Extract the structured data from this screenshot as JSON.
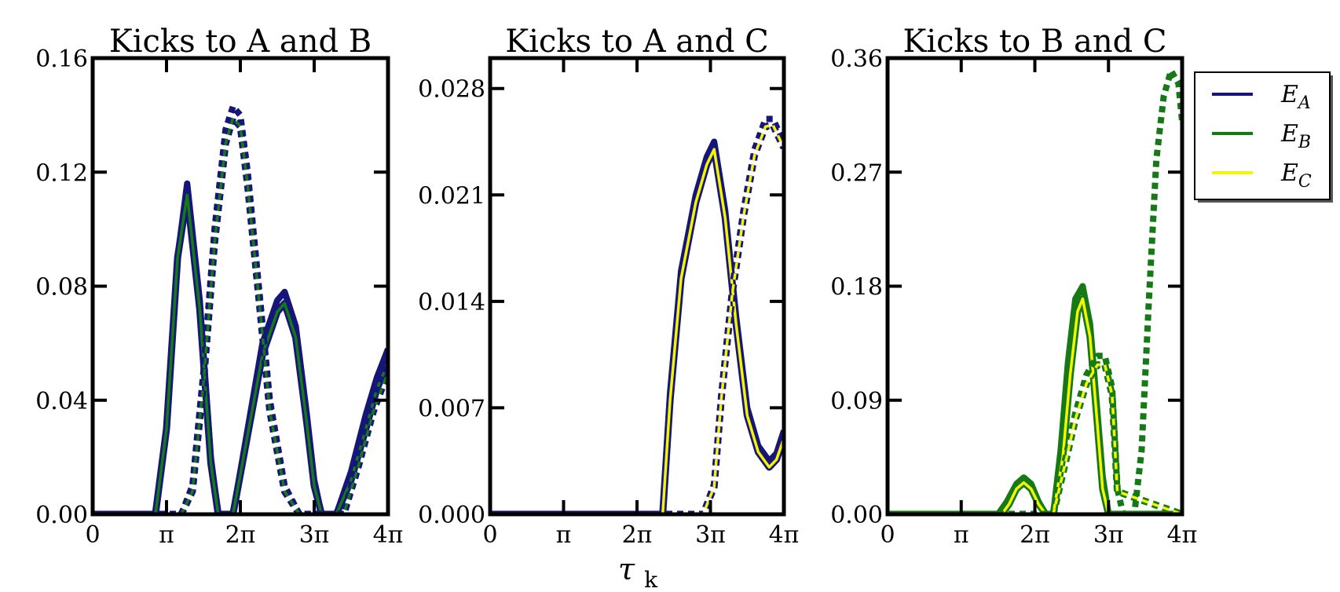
{
  "figure": {
    "xlabel": "τk",
    "x_tick_labels": [
      "0",
      "π",
      "2π",
      "3π",
      "4π"
    ],
    "legend": [
      {
        "name": "E_A",
        "label": "EA",
        "color": "#16167a"
      },
      {
        "name": "E_B",
        "label": "EB",
        "color": "#157a15"
      },
      {
        "name": "E_C",
        "label": "EC",
        "color": "#f5f500"
      }
    ]
  },
  "chart_data": [
    {
      "type": "line",
      "title": "Kicks to A and B",
      "xlim": [
        0,
        4
      ],
      "x_unit": "π",
      "ylim": [
        0,
        0.16
      ],
      "yticks": [
        0.0,
        0.04,
        0.08,
        0.12,
        0.16
      ],
      "ytick_labels": [
        "0.00",
        "0.04",
        "0.08",
        "0.12",
        "0.16"
      ],
      "grid": false,
      "series": [
        {
          "name": "E_A",
          "style": "solid",
          "color": "#16167a",
          "outline": false,
          "x": [
            0,
            0.85,
            1.0,
            1.15,
            1.28,
            1.45,
            1.6,
            1.7,
            1.9,
            2.1,
            2.3,
            2.5,
            2.6,
            2.75,
            2.9,
            3.0,
            3.1,
            3.3,
            3.5,
            3.7,
            3.85,
            4.0
          ],
          "y": [
            0,
            0,
            0.03,
            0.09,
            0.116,
            0.075,
            0.02,
            0,
            0,
            0.03,
            0.06,
            0.075,
            0.078,
            0.066,
            0.035,
            0.012,
            0,
            0,
            0.015,
            0.035,
            0.048,
            0.058
          ]
        },
        {
          "name": "E_B",
          "style": "solid",
          "color": "#157a15",
          "outline": true,
          "x": [
            0,
            0.85,
            1.0,
            1.15,
            1.28,
            1.45,
            1.6,
            1.7,
            1.9,
            2.1,
            2.3,
            2.5,
            2.6,
            2.75,
            2.9,
            3.0,
            3.1,
            3.3,
            3.5,
            3.7,
            3.85,
            4.0
          ],
          "y": [
            0,
            0,
            0.03,
            0.09,
            0.112,
            0.072,
            0.018,
            0,
            0,
            0.028,
            0.056,
            0.071,
            0.074,
            0.062,
            0.032,
            0.01,
            0,
            0,
            0.012,
            0.03,
            0.044,
            0.053
          ]
        },
        {
          "name": "E_A",
          "style": "dotted",
          "color": "#16167a",
          "outline": false,
          "x": [
            0,
            1.2,
            1.35,
            1.5,
            1.65,
            1.8,
            1.9,
            2.0,
            2.1,
            2.25,
            2.4,
            2.6,
            2.8,
            3.0,
            3.2,
            3.4,
            3.6,
            3.8,
            4.0
          ],
          "y": [
            0,
            0,
            0.01,
            0.05,
            0.1,
            0.135,
            0.143,
            0.14,
            0.12,
            0.08,
            0.04,
            0.01,
            0,
            0,
            0,
            0,
            0.02,
            0.04,
            0.055
          ]
        },
        {
          "name": "E_B",
          "style": "dotted",
          "color": "#157a15",
          "outline": true,
          "x": [
            0,
            1.2,
            1.35,
            1.5,
            1.65,
            1.8,
            1.9,
            2.0,
            2.1,
            2.25,
            2.4,
            2.6,
            2.8,
            3.0,
            3.2,
            3.4,
            3.6,
            3.8,
            4.0
          ],
          "y": [
            0,
            0,
            0.008,
            0.046,
            0.095,
            0.13,
            0.139,
            0.136,
            0.115,
            0.076,
            0.036,
            0.008,
            0,
            0,
            0,
            0,
            0.017,
            0.036,
            0.05
          ]
        }
      ]
    },
    {
      "type": "line",
      "title": "Kicks to A and C",
      "xlim": [
        0,
        4
      ],
      "x_unit": "π",
      "ylim": [
        0,
        0.03
      ],
      "yticks": [
        0.0,
        0.007,
        0.014,
        0.021,
        0.028
      ],
      "ytick_labels": [
        "0.000",
        "0.007",
        "0.014",
        "0.021",
        "0.028"
      ],
      "grid": false,
      "series": [
        {
          "name": "E_A",
          "style": "solid",
          "color": "#16167a",
          "outline": false,
          "x": [
            0,
            2.35,
            2.45,
            2.6,
            2.8,
            2.95,
            3.05,
            3.2,
            3.35,
            3.5,
            3.65,
            3.8,
            3.9,
            4.0
          ],
          "y": [
            0,
            0,
            0.008,
            0.016,
            0.021,
            0.0235,
            0.0245,
            0.02,
            0.013,
            0.007,
            0.0045,
            0.0035,
            0.004,
            0.0055
          ]
        },
        {
          "name": "E_C",
          "style": "solid",
          "color": "#f5f500",
          "outline": true,
          "x": [
            0,
            2.35,
            2.45,
            2.6,
            2.8,
            2.95,
            3.05,
            3.2,
            3.35,
            3.5,
            3.65,
            3.8,
            3.9,
            4.0
          ],
          "y": [
            0,
            0,
            0.0075,
            0.0155,
            0.0205,
            0.023,
            0.024,
            0.0195,
            0.0125,
            0.0065,
            0.0041,
            0.0031,
            0.0036,
            0.005
          ]
        },
        {
          "name": "E_A",
          "style": "dotted",
          "color": "#16167a",
          "outline": false,
          "x": [
            0,
            2.9,
            3.05,
            3.15,
            3.3,
            3.45,
            3.6,
            3.75,
            3.85,
            3.95,
            4.0
          ],
          "y": [
            0,
            0,
            0.002,
            0.008,
            0.015,
            0.02,
            0.024,
            0.026,
            0.026,
            0.025,
            0.0245
          ]
        },
        {
          "name": "E_C",
          "style": "dotted",
          "color": "#f5f500",
          "outline": true,
          "x": [
            0,
            2.9,
            3.05,
            3.15,
            3.3,
            3.45,
            3.6,
            3.75,
            3.85,
            3.95,
            4.0
          ],
          "y": [
            0,
            0,
            0.0018,
            0.0077,
            0.0146,
            0.0196,
            0.0236,
            0.0255,
            0.0256,
            0.0246,
            0.0241
          ]
        }
      ]
    },
    {
      "type": "line",
      "title": "Kicks to B and C",
      "xlim": [
        0,
        4
      ],
      "x_unit": "π",
      "ylim": [
        0,
        0.36
      ],
      "yticks": [
        0.0,
        0.09,
        0.18,
        0.27,
        0.36
      ],
      "ytick_labels": [
        "0.00",
        "0.09",
        "0.18",
        "0.27",
        "0.36"
      ],
      "grid": false,
      "legend_position": "outside-right",
      "series": [
        {
          "name": "E_B",
          "style": "solid",
          "color": "#157a15",
          "outline": false,
          "x": [
            0,
            1.5,
            1.62,
            1.75,
            1.85,
            1.95,
            2.05,
            2.15,
            2.25,
            2.35,
            2.45,
            2.55,
            2.65,
            2.75,
            2.85,
            2.92,
            3.0,
            4.0
          ],
          "y": [
            0,
            0,
            0.01,
            0.024,
            0.029,
            0.024,
            0.01,
            0,
            0,
            0.05,
            0.12,
            0.17,
            0.18,
            0.15,
            0.08,
            0.03,
            0,
            0
          ]
        },
        {
          "name": "E_C",
          "style": "solid",
          "color": "#f5f500",
          "outline": true,
          "x": [
            0,
            1.55,
            1.65,
            1.75,
            1.85,
            1.95,
            2.05,
            2.15,
            2.25,
            2.38,
            2.48,
            2.58,
            2.65,
            2.75,
            2.85,
            2.92,
            3.0,
            4.0
          ],
          "y": [
            0,
            0,
            0.008,
            0.02,
            0.025,
            0.02,
            0.008,
            0,
            0,
            0.045,
            0.11,
            0.16,
            0.17,
            0.14,
            0.07,
            0.02,
            0,
            0
          ]
        },
        {
          "name": "E_B",
          "style": "dotted",
          "color": "#157a15",
          "outline": false,
          "x": [
            0,
            2.25,
            2.4,
            2.55,
            2.7,
            2.85,
            2.95,
            3.05,
            3.12,
            3.2,
            3.35,
            3.45,
            3.55,
            3.65,
            3.75,
            3.85,
            3.95,
            4.0
          ],
          "y": [
            0,
            0,
            0.04,
            0.08,
            0.11,
            0.125,
            0.125,
            0.1,
            0.02,
            0,
            0,
            0.05,
            0.17,
            0.28,
            0.33,
            0.35,
            0.34,
            0.31
          ]
        },
        {
          "name": "E_C",
          "style": "dotted",
          "color": "#f5f500",
          "outline": true,
          "x": [
            0,
            2.25,
            2.4,
            2.55,
            2.7,
            2.85,
            2.95,
            3.05,
            3.12,
            4.0
          ],
          "y": [
            0,
            0,
            0.037,
            0.075,
            0.103,
            0.118,
            0.118,
            0.094,
            0.018,
            0
          ]
        }
      ]
    }
  ]
}
